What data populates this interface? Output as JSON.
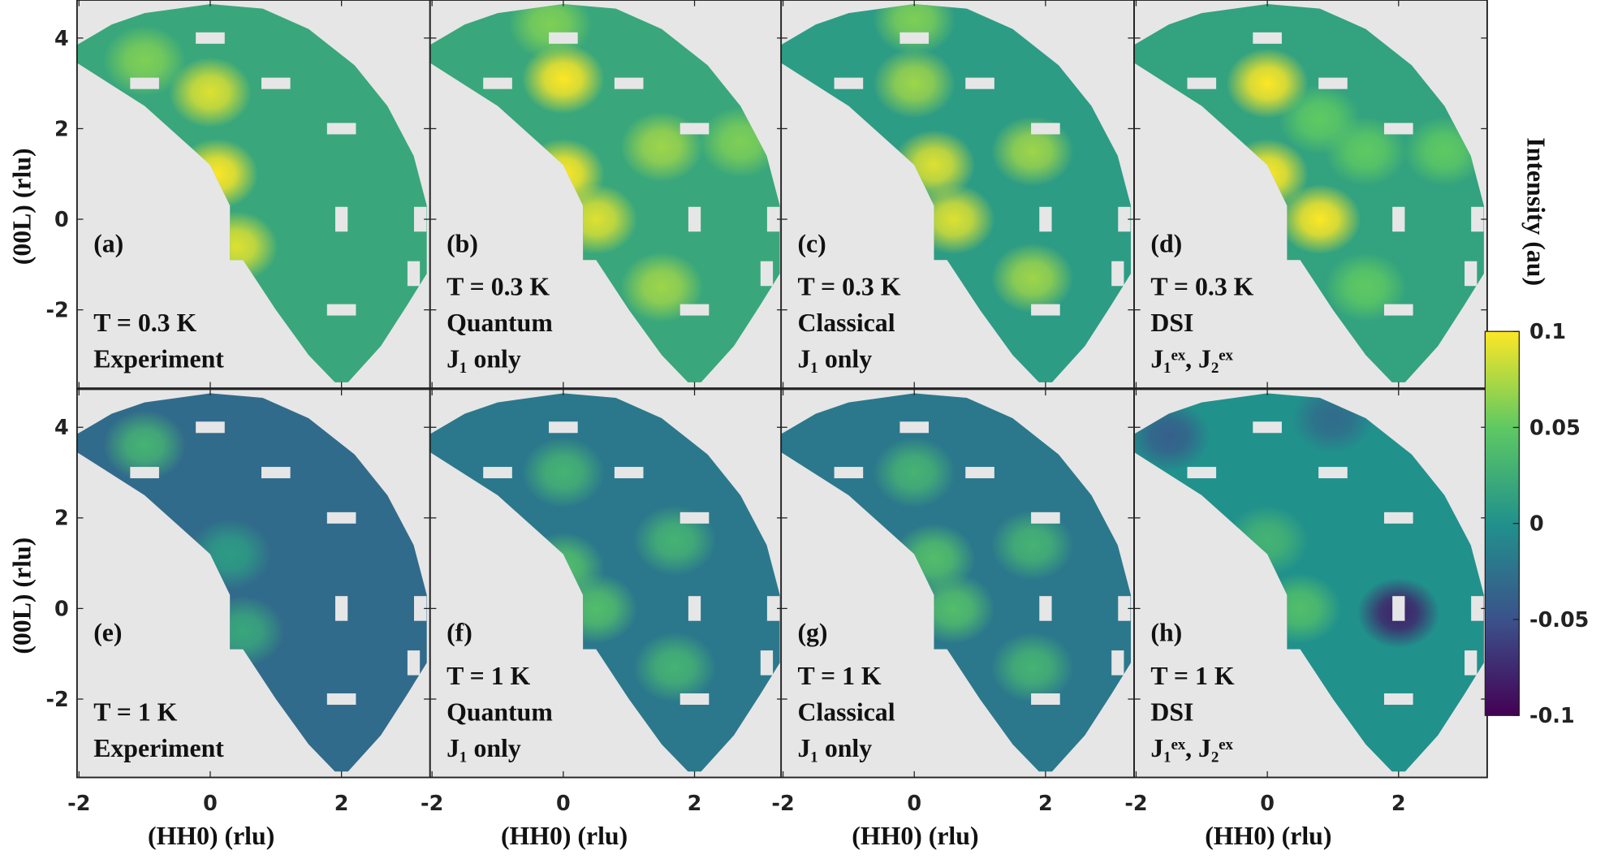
{
  "chart_data": {
    "type": "heatmap",
    "xlabel": "(HH0) (rlu)",
    "ylabel": "(00L) (rlu)",
    "xlim": [
      -2.03,
      3.35
    ],
    "ylim": [
      -3.73,
      4.84
    ],
    "xticks": [
      -2,
      0,
      2
    ],
    "yticks": [
      -2,
      0,
      2,
      4
    ],
    "colorbar": {
      "title": "Intensity (au)",
      "clim": [
        -0.1,
        0.1
      ],
      "ticks": [
        -0.1,
        -0.05,
        0,
        0.05,
        0.1
      ],
      "colormap": [
        "#440154",
        "#3b528b",
        "#21918c",
        "#5ec962",
        "#fde725"
      ]
    },
    "panels": [
      {
        "label": "(a)",
        "lines": [
          "T = 0.3 K",
          "Experiment"
        ],
        "background": 0.02,
        "peaks": [
          {
            "h": 0,
            "l": 2.8,
            "value": 0.09
          },
          {
            "h": 0.1,
            "l": 1,
            "value": 0.1
          },
          {
            "h": 0.4,
            "l": -0.6,
            "value": 0.09
          },
          {
            "h": -1,
            "l": 3.5,
            "value": 0.06
          }
        ]
      },
      {
        "label": "(b)",
        "lines": [
          "T = 0.3 K",
          "Quantum",
          "J₁ only"
        ],
        "background": 0.02,
        "peaks": [
          {
            "h": 0,
            "l": 3.1,
            "value": 0.1
          },
          {
            "h": 0,
            "l": 1,
            "value": 0.1
          },
          {
            "h": 0.5,
            "l": 0,
            "value": 0.09
          },
          {
            "h": 1.5,
            "l": 1.6,
            "value": 0.07
          },
          {
            "h": 1.5,
            "l": -1.5,
            "value": 0.07
          },
          {
            "h": 2.7,
            "l": 1.7,
            "value": 0.06
          },
          {
            "h": -0.2,
            "l": 4.3,
            "value": 0.06
          }
        ]
      },
      {
        "label": "(c)",
        "lines": [
          "T = 0.3 K",
          "Classical",
          "J₁ only"
        ],
        "background": 0.01,
        "peaks": [
          {
            "h": 0,
            "l": 3,
            "value": 0.07
          },
          {
            "h": 0.3,
            "l": 1.2,
            "value": 0.09
          },
          {
            "h": 0.6,
            "l": 0,
            "value": 0.09
          },
          {
            "h": 1.8,
            "l": 1.5,
            "value": 0.07
          },
          {
            "h": 1.8,
            "l": -1.3,
            "value": 0.07
          },
          {
            "h": 0,
            "l": 4.4,
            "value": 0.06
          }
        ]
      },
      {
        "label": "(d)",
        "lines": [
          "T = 0.3 K",
          "DSI",
          "J₁ᵉˣ, J₂ᵉˣ"
        ],
        "background": 0.015,
        "peaks": [
          {
            "h": 0,
            "l": 3,
            "value": 0.1
          },
          {
            "h": 0,
            "l": 1,
            "value": 0.1
          },
          {
            "h": 0.8,
            "l": 0,
            "value": 0.1
          },
          {
            "h": 1.5,
            "l": 1.5,
            "value": 0.05
          },
          {
            "h": 1.5,
            "l": -1.5,
            "value": 0.05
          },
          {
            "h": 2.7,
            "l": 1.5,
            "value": 0.05
          },
          {
            "h": 0.8,
            "l": 2.2,
            "value": 0.05
          }
        ]
      },
      {
        "label": "(e)",
        "lines": [
          "T = 1 K",
          "Experiment"
        ],
        "background": -0.03,
        "peaks": [
          {
            "h": -1,
            "l": 3.6,
            "value": 0.03
          },
          {
            "h": 0.5,
            "l": -0.5,
            "value": 0.02
          },
          {
            "h": 0.3,
            "l": 1.2,
            "value": 0.01
          }
        ]
      },
      {
        "label": "(f)",
        "lines": [
          "T = 1 K",
          "Quantum",
          "J₁ only"
        ],
        "background": -0.02,
        "peaks": [
          {
            "h": 0,
            "l": 3,
            "value": 0.03
          },
          {
            "h": 0,
            "l": 0.9,
            "value": 0.04
          },
          {
            "h": 0.5,
            "l": 0,
            "value": 0.04
          },
          {
            "h": 1.7,
            "l": 1.5,
            "value": 0.03
          },
          {
            "h": 1.7,
            "l": -1.3,
            "value": 0.03
          }
        ]
      },
      {
        "label": "(g)",
        "lines": [
          "T = 1 K",
          "Classical",
          "J₁ only"
        ],
        "background": -0.02,
        "peaks": [
          {
            "h": 0,
            "l": 3,
            "value": 0.03
          },
          {
            "h": 0.3,
            "l": 1.1,
            "value": 0.04
          },
          {
            "h": 0.6,
            "l": 0,
            "value": 0.04
          },
          {
            "h": 1.8,
            "l": 1.4,
            "value": 0.03
          },
          {
            "h": 1.8,
            "l": -1.3,
            "value": 0.03
          }
        ]
      },
      {
        "label": "(h)",
        "lines": [
          "T = 1 K",
          "DSI",
          "J₁ᵉˣ, J₂ᵉˣ"
        ],
        "background": 0,
        "peaks": [
          {
            "h": 2,
            "l": -0.1,
            "value": -0.08
          },
          {
            "h": 0.5,
            "l": 0,
            "value": 0.04
          },
          {
            "h": 0,
            "l": 1.5,
            "value": 0.03
          },
          {
            "h": 1,
            "l": 4.2,
            "value": -0.03
          },
          {
            "h": -1.5,
            "l": 3.8,
            "value": -0.04
          }
        ]
      }
    ]
  }
}
